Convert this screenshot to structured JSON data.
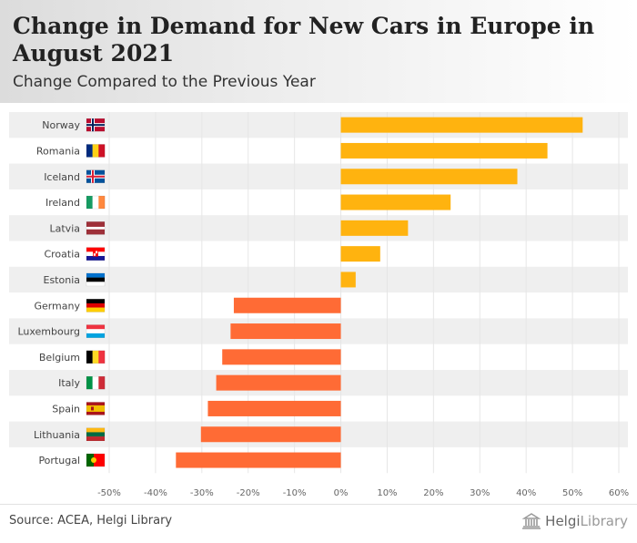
{
  "header": {
    "title": "Change in Demand for New Cars in Europe in August 2021",
    "subtitle": "Change Compared to the Previous Year"
  },
  "footer": {
    "source": "Source: ACEA, Helgi Library",
    "brand_name": "HelgiLibrary",
    "brand_prefix": "Helgi",
    "brand_suffix": "Library"
  },
  "colors": {
    "positive": "#FFB30F",
    "negative": "#FF6B35",
    "stripe": "#EFEFEF",
    "axis_text": "#666666",
    "label_text": "#444444",
    "grid": "#E6E6E6"
  },
  "chart_data": {
    "type": "bar",
    "orientation": "horizontal",
    "categories": [
      "Norway",
      "Romania",
      "Iceland",
      "Ireland",
      "Latvia",
      "Croatia",
      "Estonia",
      "Germany",
      "Luxembourg",
      "Belgium",
      "Italy",
      "Spain",
      "Lithuania",
      "Portugal"
    ],
    "flags": [
      "flag-norway",
      "flag-romania",
      "flag-iceland",
      "flag-ireland",
      "flag-latvia",
      "flag-croatia",
      "flag-estonia",
      "flag-germany",
      "flag-luxembourg",
      "flag-belgium",
      "flag-italy",
      "flag-spain",
      "flag-lithuania",
      "flag-portugal"
    ],
    "values": [
      52.2,
      44.6,
      38.1,
      23.7,
      14.5,
      8.5,
      3.2,
      -23.1,
      -23.8,
      -25.6,
      -26.9,
      -28.7,
      -30.2,
      -35.6
    ],
    "xlim": [
      -50,
      60
    ],
    "xticks": [
      -50,
      -40,
      -30,
      -20,
      -10,
      0,
      10,
      20,
      30,
      40,
      50,
      60
    ],
    "xtick_labels": [
      "-50%",
      "-40%",
      "-30%",
      "-20%",
      "-10%",
      "0%",
      "10%",
      "20%",
      "30%",
      "40%",
      "50%",
      "60%"
    ],
    "unit": "%",
    "grid": true,
    "legend": false
  }
}
